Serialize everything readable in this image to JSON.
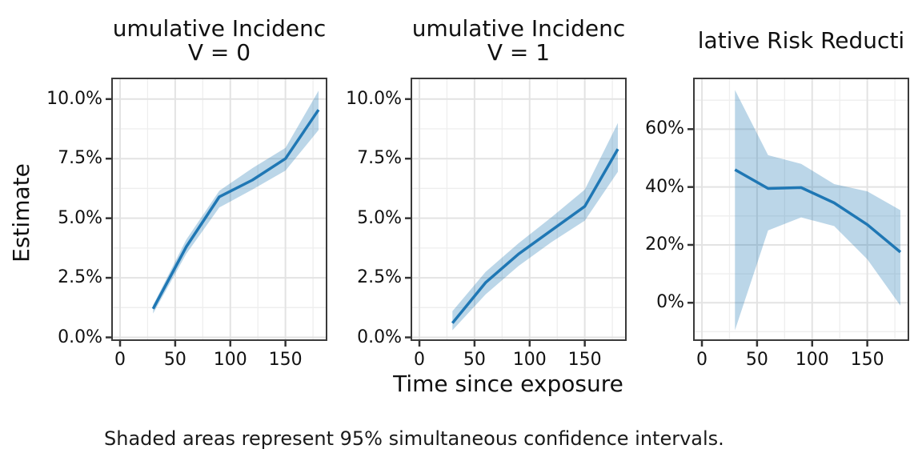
{
  "figure": {
    "ylabel": "Estimate",
    "xlabel": "Time since exposure",
    "caption": "Shaded areas represent 95% simultaneous confidence intervals.",
    "colors": {
      "line": "#1f77b4",
      "band_fill": "#1f77b4",
      "band_opacity": 0.3,
      "grid_major": "#e3e3e3",
      "grid_minor": "#eeeeee",
      "panel_border": "#3a3a3a",
      "tick_mark": "#333333",
      "text": "#111111"
    }
  },
  "chart_data": [
    {
      "type": "line",
      "title": "umulative Incidenc",
      "subtitle": "V = 0",
      "xlabel_shared": "Time since exposure",
      "ylabel_shared": "Estimate",
      "x": [
        30,
        60,
        90,
        120,
        150,
        180
      ],
      "series": [
        {
          "name": "estimate",
          "values": [
            1.2,
            3.8,
            5.9,
            6.6,
            7.5,
            9.55
          ]
        },
        {
          "name": "ci_lower",
          "values": [
            1.0,
            3.5,
            5.45,
            6.2,
            7.0,
            8.7
          ]
        },
        {
          "name": "ci_upper",
          "values": [
            1.35,
            4.1,
            6.15,
            7.1,
            7.95,
            10.35
          ]
        }
      ],
      "band": "95% simultaneous confidence interval",
      "xlim": [
        -8,
        188
      ],
      "ylim": [
        -0.15,
        10.9
      ],
      "x_ticks": [
        {
          "value": 0,
          "label": "0"
        },
        {
          "value": 50,
          "label": "50"
        },
        {
          "value": 100,
          "label": "100"
        },
        {
          "value": 150,
          "label": "150"
        }
      ],
      "x_minor": [
        25,
        75,
        125,
        175
      ],
      "y_ticks": [
        {
          "value": 0,
          "label": "0.0%"
        },
        {
          "value": 2.5,
          "label": "2.5%"
        },
        {
          "value": 5,
          "label": "5.0%"
        },
        {
          "value": 7.5,
          "label": "7.5%"
        },
        {
          "value": 10,
          "label": "10.0%"
        }
      ],
      "y_minor": [
        1.25,
        3.75,
        6.25,
        8.75
      ],
      "grid": true
    },
    {
      "type": "line",
      "title": "umulative Incidenc",
      "subtitle": "V = 1",
      "x": [
        30,
        60,
        90,
        120,
        150,
        180
      ],
      "series": [
        {
          "name": "estimate",
          "values": [
            0.6,
            2.3,
            3.5,
            4.5,
            5.5,
            7.9
          ]
        },
        {
          "name": "ci_lower",
          "values": [
            0.3,
            1.8,
            3.0,
            4.0,
            4.9,
            6.95
          ]
        },
        {
          "name": "ci_upper",
          "values": [
            1.1,
            2.75,
            3.95,
            5.05,
            6.2,
            9.0
          ]
        }
      ],
      "band": "95% simultaneous confidence interval",
      "xlim": [
        -8,
        188
      ],
      "ylim": [
        -0.15,
        10.9
      ],
      "x_ticks": [
        {
          "value": 0,
          "label": "0"
        },
        {
          "value": 50,
          "label": "50"
        },
        {
          "value": 100,
          "label": "100"
        },
        {
          "value": 150,
          "label": "150"
        }
      ],
      "x_minor": [
        25,
        75,
        125,
        175
      ],
      "y_ticks": [
        {
          "value": 0,
          "label": "0.0%"
        },
        {
          "value": 2.5,
          "label": "2.5%"
        },
        {
          "value": 5,
          "label": "5.0%"
        },
        {
          "value": 7.5,
          "label": "7.5%"
        },
        {
          "value": 10,
          "label": "10.0%"
        }
      ],
      "y_minor": [
        1.25,
        3.75,
        6.25,
        8.75
      ],
      "grid": true
    },
    {
      "type": "line",
      "title": "lative Risk Reducti",
      "subtitle": "",
      "x": [
        30,
        60,
        90,
        120,
        150,
        180
      ],
      "series": [
        {
          "name": "estimate",
          "values": [
            46,
            39.5,
            39.8,
            34.5,
            27,
            17.5
          ]
        },
        {
          "name": "ci_lower",
          "values": [
            -9.5,
            25,
            29.5,
            26.5,
            15,
            -1
          ]
        },
        {
          "name": "ci_upper",
          "values": [
            73.5,
            51,
            48,
            41,
            38.5,
            32
          ]
        }
      ],
      "band": "95% simultaneous confidence interval",
      "xlim": [
        -8,
        188
      ],
      "ylim": [
        -13.2,
        77.8
      ],
      "x_ticks": [
        {
          "value": 0,
          "label": "0"
        },
        {
          "value": 50,
          "label": "50"
        },
        {
          "value": 100,
          "label": "100"
        },
        {
          "value": 150,
          "label": "150"
        }
      ],
      "x_minor": [
        25,
        75,
        125,
        175
      ],
      "y_ticks": [
        {
          "value": 0,
          "label": "0%"
        },
        {
          "value": 20,
          "label": "20%"
        },
        {
          "value": 40,
          "label": "40%"
        },
        {
          "value": 60,
          "label": "60%"
        }
      ],
      "y_minor": [
        -10,
        10,
        30,
        50,
        70
      ],
      "grid": true
    }
  ]
}
